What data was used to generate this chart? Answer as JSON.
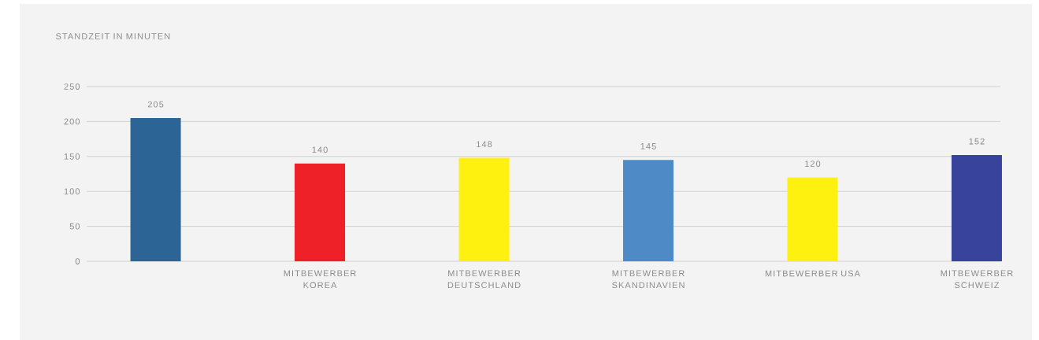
{
  "chart_data": {
    "type": "bar",
    "title": "STANDZEIT IN MINUTEN",
    "categories": [
      null,
      "MITBEWERBER KOREA",
      "MITBEWERBER DEUTSCHLAND",
      "MITBEWERBER SKANDINAVIEN",
      "MITBEWERBER USA",
      "MITBEWERBER SCHWEIZ"
    ],
    "values": [
      205,
      140,
      148,
      145,
      120,
      152
    ],
    "colors": [
      "#2c6495",
      "#ee2028",
      "#fff10f",
      "#4e8bc6",
      "#fff10f",
      "#38449c"
    ],
    "ylim": [
      0,
      250
    ],
    "yticks": [
      0,
      50,
      100,
      150,
      200,
      250
    ],
    "grid": "y",
    "data_labels": true
  }
}
